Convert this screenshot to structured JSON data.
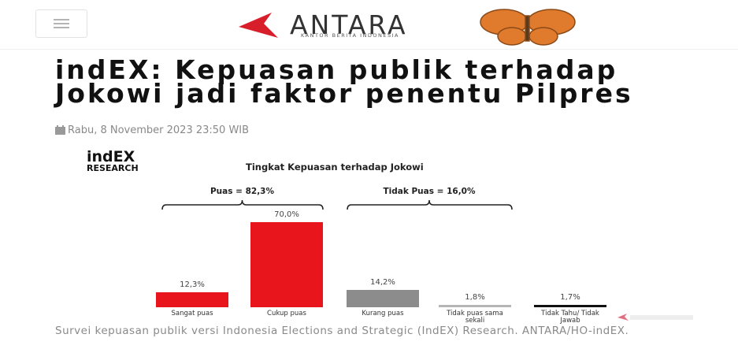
{
  "header": {
    "logo": "ANTARA",
    "tagline": "KANTOR BERITA INDONESIA"
  },
  "article": {
    "title": "indEX: Kepuasan publik terhadap Jokowi jadi faktor penentu Pilpres",
    "date": "Rabu, 8 November 2023 23:50 WIB",
    "caption": "Survei kepuasan publik versi Indonesia Elections and Strategic (IndEX) Research. ANTARA/HO-indEX."
  },
  "chart_brand": {
    "name": "indEX",
    "sub": "RESEARCH"
  },
  "chart_data": {
    "type": "bar",
    "title": "Tingkat Kepuasan terhadap Jokowi",
    "annotations": [
      "Puas = 82,3%",
      "Tidak Puas = 16,0%"
    ],
    "categories": [
      "Sangat puas",
      "Cukup puas",
      "Kurang puas",
      "Tidak puas sama sekali",
      "Tidak Tahu/ Tidak Jawab"
    ],
    "values": [
      12.3,
      70.0,
      14.2,
      1.8,
      1.7
    ],
    "value_labels": [
      "12,3%",
      "70,0%",
      "14,2%",
      "1,8%",
      "1,7%"
    ],
    "colors": [
      "#e8161c",
      "#e8161c",
      "#8c8c8c",
      "#b5b5b5",
      "#111111"
    ]
  }
}
